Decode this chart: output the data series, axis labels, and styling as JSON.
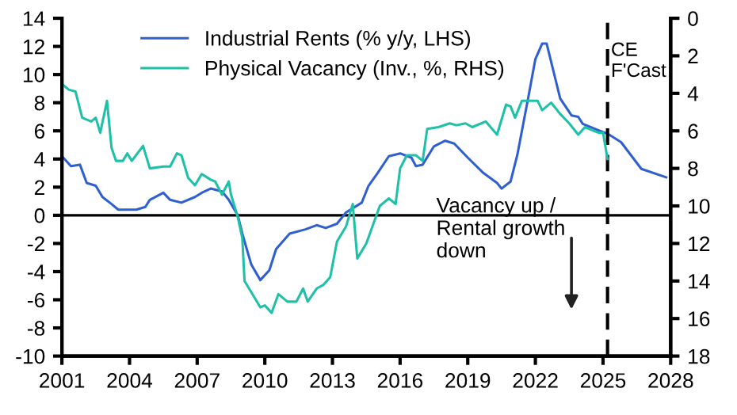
{
  "chart_data": {
    "type": "line",
    "series": [
      {
        "name": "Industrial Rents (% y/y, LHS)",
        "color": "#2f5fd0",
        "x": [
          2001.0,
          2001.4,
          2001.8,
          2002.1,
          2002.5,
          2002.8,
          2003.2,
          2003.5,
          2004.3,
          2004.7,
          2004.9,
          2005.5,
          2005.8,
          2006.3,
          2006.9,
          2007.2,
          2007.6,
          2008.1,
          2008.4,
          2008.8,
          2009.0,
          2009.4,
          2009.8,
          2010.2,
          2010.5,
          2011.1,
          2011.8,
          2012.3,
          2012.7,
          2013.2,
          2013.6,
          2014.3,
          2014.6,
          2015.0,
          2015.5,
          2016.0,
          2016.5,
          2016.7,
          2017.0,
          2017.5,
          2018.0,
          2018.4,
          2019.0,
          2019.7,
          2020.3,
          2020.5,
          2020.9,
          2021.2,
          2021.7,
          2022.0,
          2022.3,
          2022.5,
          2022.9,
          2023.1,
          2023.6,
          2023.9,
          2024.1,
          2024.7,
          2025.2,
          2025.8,
          2026.7,
          2027.8
        ],
        "values": [
          4.2,
          3.5,
          3.6,
          2.3,
          2.1,
          1.3,
          0.8,
          0.4,
          0.4,
          0.6,
          1.1,
          1.6,
          1.1,
          0.9,
          1.3,
          1.6,
          1.9,
          1.7,
          1.1,
          0,
          -1.3,
          -3.5,
          -4.6,
          -3.9,
          -2.4,
          -1.3,
          -1.0,
          -0.7,
          -0.9,
          -0.6,
          0.2,
          0.9,
          2.1,
          3.0,
          4.2,
          4.4,
          4.1,
          3.5,
          3.6,
          4.9,
          5.3,
          5.1,
          4.1,
          3.0,
          2.3,
          1.9,
          2.4,
          4.3,
          8.5,
          11.1,
          12.2,
          12.2,
          9.6,
          8.3,
          7.1,
          7.0,
          6.5,
          6.1,
          5.8,
          5.2,
          3.3,
          2.7
        ]
      },
      {
        "name": "Physical Vacancy (Inv., %, RHS)",
        "color": "#1fc0a8",
        "axis": "y2",
        "x": [
          2001.0,
          2001.3,
          2001.6,
          2001.9,
          2002.3,
          2002.5,
          2002.7,
          2003.0,
          2003.2,
          2003.4,
          2003.7,
          2003.9,
          2004.1,
          2004.6,
          2004.9,
          2005.5,
          2005.8,
          2006.1,
          2006.3,
          2006.6,
          2006.9,
          2007.2,
          2007.6,
          2007.8,
          2008.1,
          2008.4,
          2008.5,
          2008.8,
          2009.0,
          2009.1,
          2009.5,
          2009.8,
          2010.0,
          2010.3,
          2010.6,
          2011.0,
          2011.4,
          2011.7,
          2011.9,
          2012.3,
          2012.6,
          2012.9,
          2013.2,
          2013.6,
          2013.9,
          2014.1,
          2014.5,
          2015.1,
          2015.5,
          2015.8,
          2016.0,
          2016.3,
          2016.7,
          2017.0,
          2017.2,
          2017.7,
          2018.2,
          2018.5,
          2018.9,
          2019.2,
          2019.8,
          2020.3,
          2020.7,
          2020.9,
          2021.1,
          2021.4,
          2022.1,
          2022.3,
          2022.7,
          2023.1,
          2023.5,
          2023.9,
          2024.2,
          2024.8,
          2025.0,
          2025.2
        ],
        "values": [
          3.5,
          3.8,
          3.9,
          5.3,
          5.5,
          5.3,
          6.1,
          4.4,
          6.9,
          7.6,
          7.6,
          7.2,
          7.6,
          6.8,
          8.0,
          7.9,
          7.9,
          7.2,
          7.3,
          8.5,
          8.9,
          8.3,
          8.6,
          8.7,
          9.4,
          8.7,
          9.4,
          10.6,
          11.7,
          14.0,
          14.8,
          15.4,
          15.3,
          15.7,
          14.7,
          15.1,
          15.1,
          14.4,
          15.1,
          14.4,
          14.2,
          13.8,
          11.9,
          11.1,
          9.9,
          12.8,
          12.0,
          10.0,
          9.6,
          9.9,
          8.0,
          7.3,
          7.3,
          7.6,
          5.9,
          5.8,
          5.6,
          5.7,
          5.6,
          5.8,
          5.5,
          6.2,
          4.6,
          4.7,
          5.3,
          4.4,
          4.4,
          4.9,
          4.5,
          5.1,
          5.6,
          6.2,
          5.8,
          6.1,
          6.1,
          7.5
        ]
      }
    ],
    "xlim": [
      2001,
      2028
    ],
    "xticks": [
      2001,
      2004,
      2007,
      2010,
      2013,
      2016,
      2019,
      2022,
      2025,
      2028
    ],
    "ylim": [
      -10,
      14
    ],
    "yticks": [
      -10,
      -8,
      -6,
      -4,
      -2,
      0,
      2,
      4,
      6,
      8,
      10,
      12,
      14
    ],
    "y2lim": [
      18,
      0
    ],
    "y2ticks": [
      0,
      2,
      4,
      6,
      8,
      10,
      12,
      14,
      16,
      18
    ],
    "ref_lines": [
      {
        "axis": "y",
        "value": 0,
        "color": "#000000",
        "line_style": "solid"
      },
      {
        "axis": "x",
        "value": 2025.2,
        "label": "CE\nF'Cast",
        "color": "#000000",
        "line_style": "dashed"
      }
    ],
    "annotations": [
      "Vacancy up /\nRental growth\ndown"
    ],
    "legend": "top left",
    "grid": false,
    "marker": "none",
    "line_style": "solid"
  }
}
